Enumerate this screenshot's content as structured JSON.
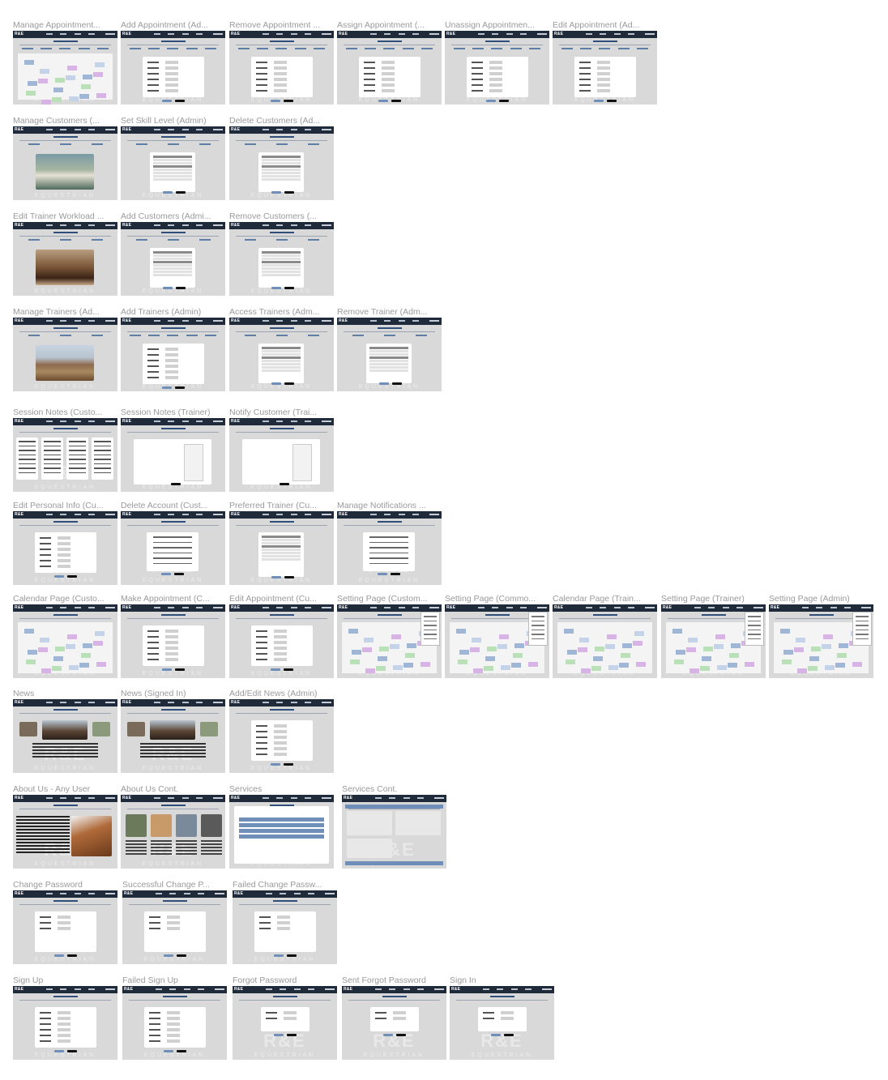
{
  "frames": [
    {
      "title": "Manage Appointment...",
      "kind": "calendar",
      "tabs": true
    },
    {
      "title": "Add Appointment (Ad...",
      "kind": "form",
      "tabs": true
    },
    {
      "title": "Remove Appointment ...",
      "kind": "form",
      "tabs": true
    },
    {
      "title": "Assign Appointment (...",
      "kind": "form",
      "tabs": true
    },
    {
      "title": "Unassign Appointmen...",
      "kind": "form",
      "tabs": true
    },
    {
      "title": "Edit Appointment (Ad...",
      "kind": "form",
      "tabs": true
    },
    {
      "title": "Manage Customers (...",
      "kind": "image",
      "img": "river",
      "tabs": true
    },
    {
      "title": "Set Skill Level (Admin)",
      "kind": "table",
      "tabs": true
    },
    {
      "title": "Delete Customers (Ad...",
      "kind": "table",
      "tabs": true
    },
    {
      "title": "Edit Trainer Workload ...",
      "kind": "image",
      "img": "horses",
      "tabs": true
    },
    {
      "title": "Add Customers (Admi...",
      "kind": "table",
      "tabs": true
    },
    {
      "title": "Remove Customers (...",
      "kind": "table",
      "tabs": true
    },
    {
      "title": "Manage Trainers (Ad...",
      "kind": "image",
      "img": "mountain",
      "tabs": true
    },
    {
      "title": "Add Trainers (Admin)",
      "kind": "form",
      "tabs": true
    },
    {
      "title": "Access Trainers (Adm...",
      "kind": "table",
      "tabs": true
    },
    {
      "title": "Remove Trainer (Adm...",
      "kind": "table",
      "tabs": true
    },
    {
      "title": "Session Notes (Custo...",
      "kind": "notes"
    },
    {
      "title": "Session Notes (Trainer)",
      "kind": "textform"
    },
    {
      "title": "Notify Customer (Trai...",
      "kind": "textform"
    },
    {
      "title": "Edit Personal Info (Cu...",
      "kind": "form"
    },
    {
      "title": "Delete Account (Cust...",
      "kind": "text"
    },
    {
      "title": "Preferred Trainer (Cu...",
      "kind": "table"
    },
    {
      "title": "Manage Notifications ...",
      "kind": "text"
    },
    {
      "title": "Calendar Page (Custo...",
      "kind": "calendar"
    },
    {
      "title": "Make Appointment (C...",
      "kind": "form"
    },
    {
      "title": "Edit Appointment (Cu...",
      "kind": "form"
    },
    {
      "title": "Setting Page (Custom...",
      "kind": "calendar",
      "dropdown": true
    },
    {
      "title": "Setting Page (Commo...",
      "kind": "calendar",
      "dropdown": true
    },
    {
      "title": "Calendar Page (Train...",
      "kind": "calendar"
    },
    {
      "title": "Setting Page (Trainer)",
      "kind": "calendar",
      "dropdown": true
    },
    {
      "title": "Setting Page (Admin)",
      "kind": "calendar",
      "dropdown": true
    },
    {
      "title": "News",
      "kind": "news"
    },
    {
      "title": "News (Signed In)",
      "kind": "news"
    },
    {
      "title": "Add/Edit News (Admin)",
      "kind": "form"
    },
    {
      "title": "About Us - Any User",
      "kind": "about"
    },
    {
      "title": "About Us Cont.",
      "kind": "team"
    },
    {
      "title": "Services",
      "kind": "services"
    },
    {
      "title": "Services Cont.",
      "kind": "services2"
    },
    {
      "title": "Change Password",
      "kind": "password"
    },
    {
      "title": "Successful Change P...",
      "kind": "password"
    },
    {
      "title": "Failed Change Passw...",
      "kind": "password"
    },
    {
      "title": "Sign Up",
      "kind": "signup"
    },
    {
      "title": "Failed Sign Up",
      "kind": "signup"
    },
    {
      "title": "Forgot Password",
      "kind": "small"
    },
    {
      "title": "Sent Forgot Password",
      "kind": "small"
    },
    {
      "title": "Sign In",
      "kind": "small"
    }
  ],
  "brand": {
    "logo": "R&E",
    "watermark": "R&E",
    "watermark_sub": "EQUESTRIAN"
  },
  "colors": {
    "nav": "#1f2a3a",
    "canvas": "#d9d9d9",
    "accent": "#6f8fb8"
  }
}
